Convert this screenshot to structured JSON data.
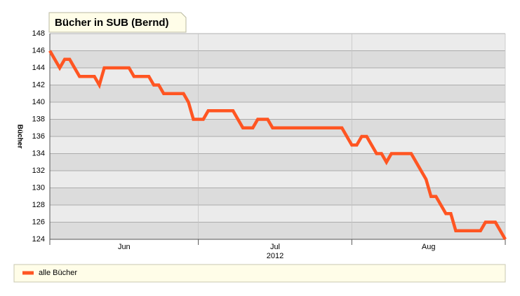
{
  "chart_data": {
    "type": "line",
    "title": "Bücher in SUB (Bernd)",
    "ylabel": "Bücher",
    "x_sublabel": "2012",
    "x": [
      0,
      2,
      3,
      4,
      6,
      9,
      10,
      11,
      16,
      17,
      20,
      21,
      22,
      23,
      27,
      28,
      29,
      31,
      32,
      37,
      39,
      41,
      42,
      44,
      45,
      59,
      61,
      62,
      63,
      64,
      66,
      67,
      68,
      69,
      73,
      76,
      77,
      78,
      80,
      81,
      82,
      87,
      88,
      90,
      92
    ],
    "series": [
      {
        "name": "alle Bücher",
        "color": "#ff5522",
        "values": [
          146,
          144,
          145,
          145,
          143,
          143,
          142,
          144,
          144,
          143,
          143,
          142,
          142,
          141,
          141,
          140,
          138,
          138,
          139,
          139,
          137,
          137,
          138,
          138,
          137,
          137,
          135,
          135,
          136,
          136,
          134,
          134,
          133,
          134,
          134,
          131,
          129,
          129,
          127,
          127,
          125,
          125,
          126,
          126,
          124
        ]
      }
    ],
    "xlim": [
      0,
      92
    ],
    "xticks": [
      {
        "value": 15,
        "label": "Jun"
      },
      {
        "value": 45.5,
        "label": "Jul"
      },
      {
        "value": 76.5,
        "label": "Aug"
      }
    ],
    "xgrid": [
      0,
      30,
      61,
      92
    ],
    "ylim": [
      124,
      148
    ],
    "yticks": [
      124,
      126,
      128,
      130,
      132,
      134,
      136,
      138,
      140,
      142,
      144,
      146,
      148
    ],
    "grid": true,
    "legend": "bottom"
  }
}
